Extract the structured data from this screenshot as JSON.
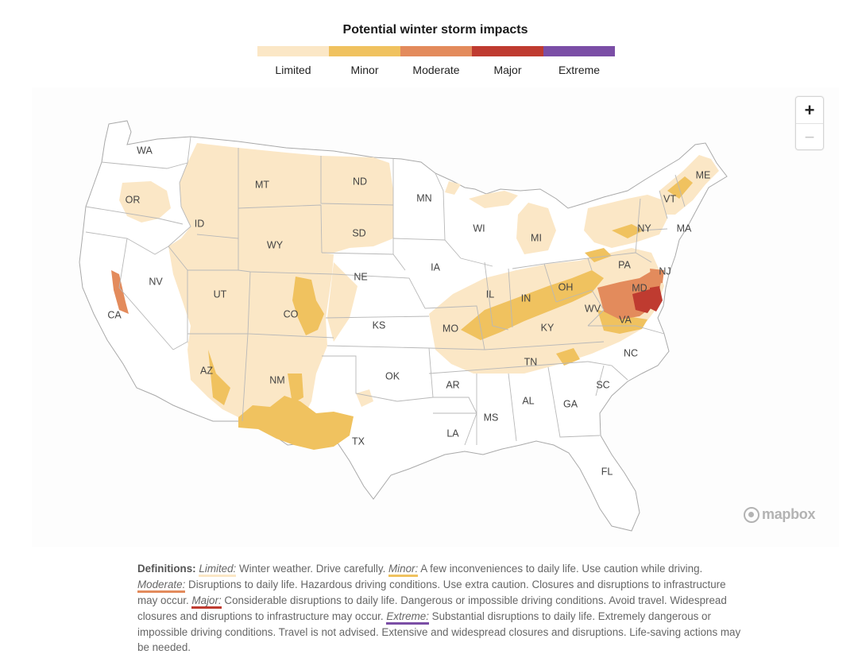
{
  "title": "Potential winter storm impacts",
  "legend": [
    {
      "label": "Limited",
      "color": "#fbe7c6"
    },
    {
      "label": "Minor",
      "color": "#f0c25f"
    },
    {
      "label": "Moderate",
      "color": "#e38b5c"
    },
    {
      "label": "Major",
      "color": "#bf3b30"
    },
    {
      "label": "Extreme",
      "color": "#7b4ea6"
    }
  ],
  "states": [
    "WA",
    "OR",
    "CA",
    "ID",
    "NV",
    "MT",
    "WY",
    "UT",
    "AZ",
    "CO",
    "NM",
    "ND",
    "SD",
    "NE",
    "KS",
    "OK",
    "TX",
    "MN",
    "IA",
    "MO",
    "AR",
    "LA",
    "WI",
    "IL",
    "MI",
    "IN",
    "OH",
    "KY",
    "TN",
    "MS",
    "AL",
    "GA",
    "SC",
    "NC",
    "VA",
    "WV",
    "MD",
    "PA",
    "NJ",
    "NY",
    "VT",
    "MA",
    "ME",
    "FL"
  ],
  "zoom": {
    "in": "+",
    "out": "−"
  },
  "attribution": "mapbox",
  "definitions": {
    "heading": "Definitions:",
    "items": [
      {
        "term": "Limited:",
        "text": " Winter weather. Drive carefully. ",
        "color": "#fbe7c6"
      },
      {
        "term": "Minor:",
        "text": " A few inconveniences to daily life. Use caution while driving. ",
        "color": "#f0c25f"
      },
      {
        "term": "Moderate:",
        "text": " Disruptions to daily life. Hazardous driving conditions. Use extra caution. Closures and disruptions to infrastructure may occur. ",
        "color": "#e38b5c"
      },
      {
        "term": "Major:",
        "text": " Considerable disruptions to daily life. Dangerous or impossible driving conditions. Avoid travel. Widespread closures and disruptions to infrastructure may occur. ",
        "color": "#bf3b30"
      },
      {
        "term": "Extreme:",
        "text": " Substantial disruptions to daily life. Extremely dangerous or impossible driving conditions. Travel is not advised. Extensive and widespread closures and disruptions. Life-saving actions may be needed.",
        "color": "#7b4ea6"
      }
    ]
  }
}
